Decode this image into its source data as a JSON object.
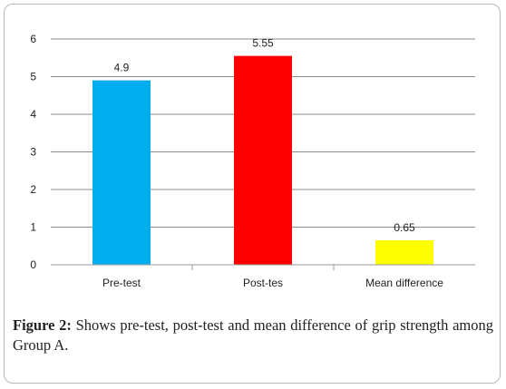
{
  "chart_data": {
    "type": "bar",
    "categories": [
      "Pre-test",
      "Post-tes",
      "Mean difference"
    ],
    "values": [
      4.9,
      5.55,
      0.65
    ],
    "value_labels": [
      "4.9",
      "5.55",
      "0.65"
    ],
    "colors": [
      "#00aeef",
      "#ff0000",
      "#ffff00"
    ],
    "ylim": [
      0,
      6
    ],
    "yticks": [
      0,
      1,
      2,
      3,
      4,
      5,
      6
    ],
    "grid": true,
    "legend": "none"
  },
  "caption": {
    "label": "Figure 2:",
    "text": "Shows pre-test, post-test and mean difference of grip strength among Group A."
  }
}
